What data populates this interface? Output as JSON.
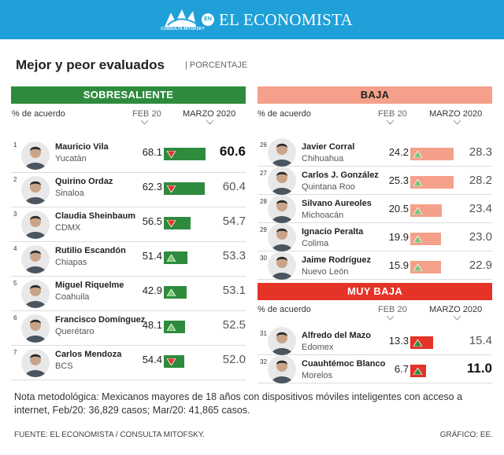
{
  "header": {
    "brand": "EL ECONOMISTA",
    "en": "EN",
    "logo_text": "CONSULTA MITOFSKY",
    "color": "#1fa0d8"
  },
  "title": "Mejor y peor evaluados",
  "subtitle": "| PORCENTAJE",
  "col_labels": {
    "pct": "% de acuerdo",
    "feb": "FEB 20",
    "mar": "MARZO 2020"
  },
  "colors": {
    "green": "#2e8b3e",
    "salmon": "#f4a08a",
    "red": "#e63328",
    "icon_down": "#e63328",
    "icon_up": "#7cc576",
    "icon_dark_up": "#2e8b3e"
  },
  "note": "Nota metodológica: Mexicanos mayores de 18 años con dispositivos móviles inteligentes con acceso a internet, Feb/20: 36,829 casos; Mar/20: 41,865 casos.",
  "source": "FUENTE: EL ECONOMISTA / CONSULTA MITOFSKY.",
  "credit": "GRÁFICO: EE.",
  "chart_data": [
    {
      "type": "table",
      "title": "SOBRESALIENTE",
      "columns": [
        "% de acuerdo",
        "FEB 20",
        "MARZO 2020"
      ],
      "rows": [
        {
          "rank": "1",
          "name": "Mauricio Vila",
          "state": "Yucatán",
          "feb": 68.1,
          "mar": 60.6,
          "trend": "down",
          "highlight": true
        },
        {
          "rank": "2",
          "name": "Quirino Ordaz",
          "state": "Sinaloa",
          "feb": 62.3,
          "mar": 60.4,
          "trend": "down",
          "highlight": false
        },
        {
          "rank": "3",
          "name": "Claudia Sheinbaum",
          "state": "CDMX",
          "feb": 56.5,
          "mar": 54.7,
          "trend": "down",
          "highlight": false
        },
        {
          "rank": "4",
          "name": "Rutilio Escandón",
          "state": "Chiapas",
          "feb": 51.4,
          "mar": 53.3,
          "trend": "up",
          "highlight": false
        },
        {
          "rank": "5",
          "name": "Miguel Riquelme",
          "state": "Coahuila",
          "feb": 42.9,
          "mar": 53.1,
          "trend": "up",
          "highlight": false
        },
        {
          "rank": "6",
          "name": "Francisco Domínguez",
          "state": "Querétaro",
          "feb": 48.1,
          "mar": 52.5,
          "trend": "up",
          "highlight": false
        },
        {
          "rank": "7",
          "name": "Carlos Mendoza",
          "state": "BCS",
          "feb": 54.4,
          "mar": 52.0,
          "trend": "down",
          "highlight": false
        }
      ]
    },
    {
      "type": "table",
      "title": "BAJA",
      "columns": [
        "% de acuerdo",
        "FEB 20",
        "MARZO 2020"
      ],
      "rows": [
        {
          "rank": "26",
          "name": "Javier Corral",
          "state": "Chihuahua",
          "feb": 24.2,
          "mar": 28.3,
          "trend": "up",
          "highlight": false
        },
        {
          "rank": "27",
          "name": "Carlos J. González",
          "state": "Quintana Roo",
          "feb": 25.3,
          "mar": 28.2,
          "trend": "up",
          "highlight": false
        },
        {
          "rank": "28",
          "name": "Silvano Aureoles",
          "state": "Michoacán",
          "feb": 20.5,
          "mar": 23.4,
          "trend": "up",
          "highlight": false
        },
        {
          "rank": "29",
          "name": "Ignacio Peralta",
          "state": "Colima",
          "feb": 19.9,
          "mar": 23.0,
          "trend": "up",
          "highlight": false
        },
        {
          "rank": "30",
          "name": "Jaime Rodríguez",
          "state": "Nuevo León",
          "feb": 15.9,
          "mar": 22.9,
          "trend": "up",
          "highlight": false
        }
      ]
    },
    {
      "type": "table",
      "title": "MUY BAJA",
      "columns": [
        "% de acuerdo",
        "FEB 20",
        "MARZO 2020"
      ],
      "rows": [
        {
          "rank": "31",
          "name": "Alfredo del Mazo",
          "state": "Edomex",
          "feb": 13.3,
          "mar": 15.4,
          "trend": "up",
          "highlight": false
        },
        {
          "rank": "32",
          "name": "Cuauhtémoc Blanco",
          "state": "Morelos",
          "feb": 6.7,
          "mar": 11.0,
          "trend": "up",
          "highlight": true
        }
      ]
    }
  ]
}
